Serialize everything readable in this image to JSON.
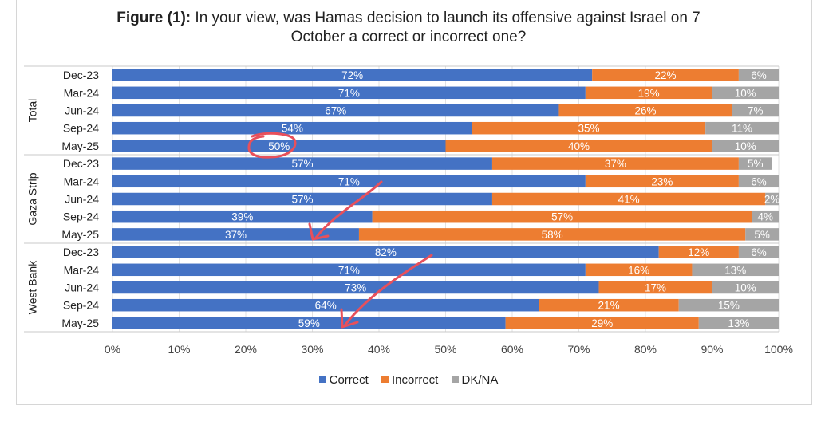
{
  "title": {
    "prefix": "Figure (1):",
    "line1": "In your view, was Hamas decision to launch its offensive against Israel on 7",
    "line2": "October a correct or incorrect one?"
  },
  "colors": {
    "correct": "#4472C4",
    "incorrect": "#ED7D31",
    "dkna": "#A5A5A5",
    "annotation": "#E8505B"
  },
  "chart_data": {
    "type": "bar",
    "orientation": "horizontal",
    "stacked": true,
    "title": "In your view, was Hamas decision to launch its offensive against Israel on 7 October a correct or incorrect one?",
    "xlim": [
      0,
      100
    ],
    "x_ticks": [
      "0%",
      "10%",
      "20%",
      "30%",
      "40%",
      "50%",
      "60%",
      "70%",
      "80%",
      "90%",
      "100%"
    ],
    "legend": [
      "Correct",
      "Incorrect",
      "DK/NA"
    ],
    "legend_position": "bottom",
    "groups": [
      {
        "name": "Total",
        "rows": [
          {
            "label": "Dec-23",
            "correct": 72,
            "incorrect": 22,
            "dkna": 6
          },
          {
            "label": "Mar-24",
            "correct": 71,
            "incorrect": 19,
            "dkna": 10
          },
          {
            "label": "Jun-24",
            "correct": 67,
            "incorrect": 26,
            "dkna": 7
          },
          {
            "label": "Sep-24",
            "correct": 54,
            "incorrect": 35,
            "dkna": 11
          },
          {
            "label": "May-25",
            "correct": 50,
            "incorrect": 40,
            "dkna": 10
          }
        ]
      },
      {
        "name": "Gaza Strip",
        "rows": [
          {
            "label": "Dec-23",
            "correct": 57,
            "incorrect": 37,
            "dkna": 5
          },
          {
            "label": "Mar-24",
            "correct": 71,
            "incorrect": 23,
            "dkna": 6
          },
          {
            "label": "Jun-24",
            "correct": 57,
            "incorrect": 41,
            "dkna": 2
          },
          {
            "label": "Sep-24",
            "correct": 39,
            "incorrect": 57,
            "dkna": 4
          },
          {
            "label": "May-25",
            "correct": 37,
            "incorrect": 58,
            "dkna": 5
          }
        ]
      },
      {
        "name": "West Bank",
        "rows": [
          {
            "label": "Dec-23",
            "correct": 82,
            "incorrect": 12,
            "dkna": 6
          },
          {
            "label": "Mar-24",
            "correct": 71,
            "incorrect": 16,
            "dkna": 13
          },
          {
            "label": "Jun-24",
            "correct": 73,
            "incorrect": 17,
            "dkna": 10
          },
          {
            "label": "Sep-24",
            "correct": 64,
            "incorrect": 21,
            "dkna": 15
          },
          {
            "label": "May-25",
            "correct": 59,
            "incorrect": 29,
            "dkna": 13
          }
        ]
      }
    ],
    "annotations": [
      {
        "type": "circle",
        "target": "Total / May-25 / correct"
      },
      {
        "type": "arrow",
        "target": "Gaza Strip / May-25 / correct"
      },
      {
        "type": "arrow",
        "target": "West Bank / May-25 / correct"
      }
    ]
  }
}
